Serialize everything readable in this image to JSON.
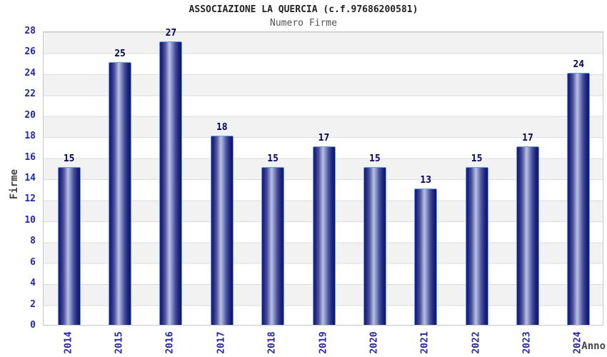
{
  "header": {
    "title": "ASSOCIAZIONE LA QUERCIA (c.f.97686200581)",
    "subtitle": "Numero Firme"
  },
  "chart_data": {
    "type": "bar",
    "title": "ASSOCIAZIONE LA QUERCIA (c.f.97686200581)",
    "subtitle": "Numero Firme",
    "categories": [
      "2014",
      "2015",
      "2016",
      "2017",
      "2018",
      "2019",
      "2020",
      "2021",
      "2022",
      "2023",
      "2024"
    ],
    "values": [
      15,
      25,
      27,
      18,
      15,
      17,
      15,
      13,
      15,
      17,
      24
    ],
    "xlabel": "Anno",
    "ylabel": "Firme",
    "ylim": [
      0,
      28
    ],
    "ytick_step": 2,
    "grid": true,
    "legend": "none",
    "band_colors": [
      "#f2f2f2",
      "#ffffff"
    ],
    "colors": {
      "tick_label": "#2222cc",
      "value_label": "#000066",
      "bar_dark": "#1a1a7e",
      "bar_light": "#b8c0e2",
      "bar_edge": "#5c9ff0",
      "grid_line": "#dcdcdc",
      "plot_border": "#c8c8c8",
      "band_gray": "#f2f2f2",
      "title": "#222222",
      "subtitle": "#555555",
      "axis_title": "#444444"
    }
  }
}
